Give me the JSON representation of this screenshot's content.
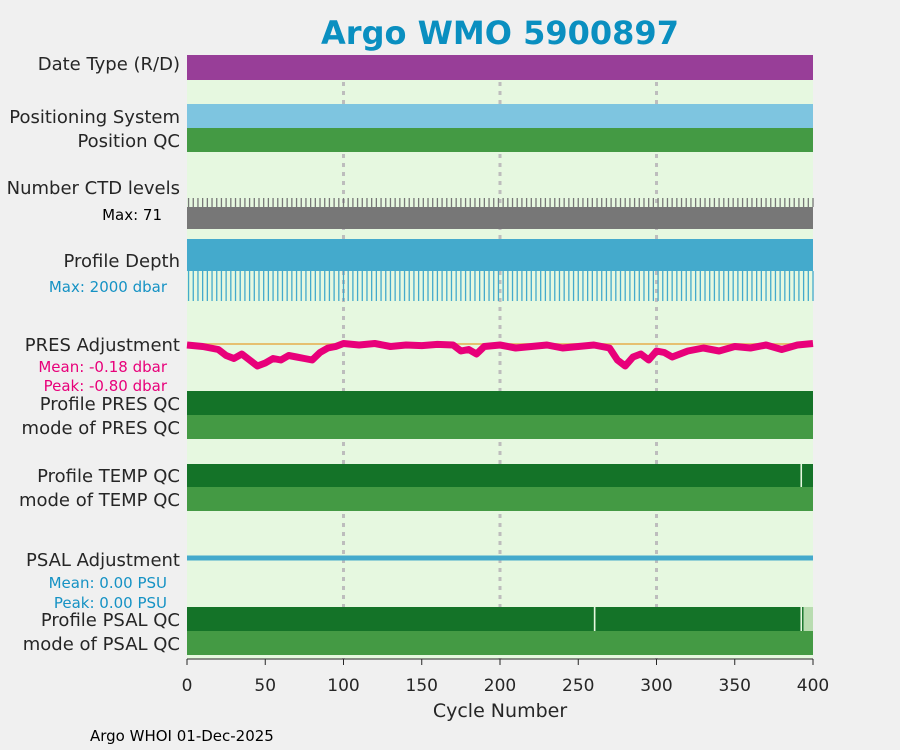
{
  "chart_data": {
    "type": "bar",
    "title": "Argo WMO 5900897",
    "xlabel": "Cycle Number",
    "xlim": [
      0,
      400
    ],
    "x_ticks": [
      0,
      50,
      100,
      150,
      200,
      250,
      300,
      350,
      400
    ],
    "grid_x": [
      100,
      200,
      300
    ],
    "footer": "Argo WHOI 01-Dec-2025",
    "colors": {
      "title": "#0a8fc0",
      "panel_bg": "#e6f8e0",
      "data_type": "#983e98",
      "positioning": "#7ec5e0",
      "position_qc": "#449a44",
      "ctd": "#777777",
      "depth": "#44aacc",
      "pres_adj": "#e8007a",
      "pres_ref": "#e6c070",
      "qc_dark": "#147328",
      "qc_mid": "#449a44",
      "qc_light": "#b8dcb0",
      "psal_adj": "#44aacc",
      "annot_blue": "#1592c4",
      "annot_pink": "#e8007a",
      "grid": "#bdbdbd"
    },
    "rows": {
      "data_type": {
        "label": "Date Type (R/D)",
        "value": "R"
      },
      "positioning": {
        "label": "Positioning System"
      },
      "position_qc": {
        "label": "Position QC"
      },
      "ctd": {
        "label": "Number CTD levels",
        "max_text": "Max: 71",
        "max": 71
      },
      "depth": {
        "label": "Profile Depth",
        "max_text": "Max: 2000 dbar",
        "max": 2000
      },
      "pres_adj": {
        "label": "PRES Adjustment",
        "mean_text": "Mean: -0.18 dbar",
        "peak_text": "Peak: -0.80 dbar",
        "mean": -0.18,
        "peak": -0.8
      },
      "pres_qc": {
        "label": "Profile PRES QC",
        "mode_label": "mode of PRES QC"
      },
      "temp_qc": {
        "label": "Profile TEMP QC",
        "mode_label": "mode of TEMP QC",
        "segments": [
          {
            "from": 0,
            "to": 392,
            "grade": "A"
          },
          {
            "from": 392,
            "to": 393,
            "grade": "gap"
          },
          {
            "from": 393,
            "to": 400,
            "grade": "A"
          }
        ]
      },
      "psal_adj": {
        "label": "PSAL Adjustment",
        "mean_text": "Mean: 0.00 PSU",
        "peak_text": "Peak: 0.00 PSU",
        "mean": 0.0,
        "peak": 0.0
      },
      "psal_qc": {
        "label": "Profile PSAL QC",
        "mode_label": "mode of PSAL QC",
        "segments": [
          {
            "from": 0,
            "to": 260,
            "grade": "A"
          },
          {
            "from": 260,
            "to": 261,
            "grade": "gap"
          },
          {
            "from": 261,
            "to": 392,
            "grade": "A"
          },
          {
            "from": 392,
            "to": 393,
            "grade": "gap"
          },
          {
            "from": 393,
            "to": 394,
            "grade": "A"
          },
          {
            "from": 394,
            "to": 400,
            "grade": "F"
          }
        ]
      }
    },
    "pres_adjustment_series": {
      "x": [
        0,
        10,
        20,
        25,
        30,
        35,
        40,
        45,
        50,
        55,
        60,
        65,
        70,
        75,
        80,
        85,
        90,
        95,
        100,
        110,
        120,
        130,
        140,
        150,
        160,
        170,
        175,
        180,
        185,
        190,
        200,
        210,
        220,
        230,
        240,
        250,
        260,
        270,
        275,
        280,
        285,
        290,
        295,
        300,
        305,
        310,
        320,
        330,
        340,
        350,
        360,
        370,
        380,
        390,
        400
      ],
      "y": [
        -0.1,
        -0.15,
        -0.25,
        -0.45,
        -0.55,
        -0.4,
        -0.6,
        -0.8,
        -0.7,
        -0.55,
        -0.6,
        -0.45,
        -0.5,
        -0.55,
        -0.6,
        -0.35,
        -0.2,
        -0.15,
        -0.05,
        -0.1,
        -0.05,
        -0.15,
        -0.1,
        -0.12,
        -0.08,
        -0.1,
        -0.3,
        -0.25,
        -0.4,
        -0.15,
        -0.1,
        -0.2,
        -0.15,
        -0.1,
        -0.2,
        -0.15,
        -0.1,
        -0.2,
        -0.6,
        -0.8,
        -0.5,
        -0.4,
        -0.6,
        -0.3,
        -0.35,
        -0.5,
        -0.3,
        -0.2,
        -0.3,
        -0.15,
        -0.2,
        -0.1,
        -0.25,
        -0.1,
        -0.05
      ]
    }
  }
}
